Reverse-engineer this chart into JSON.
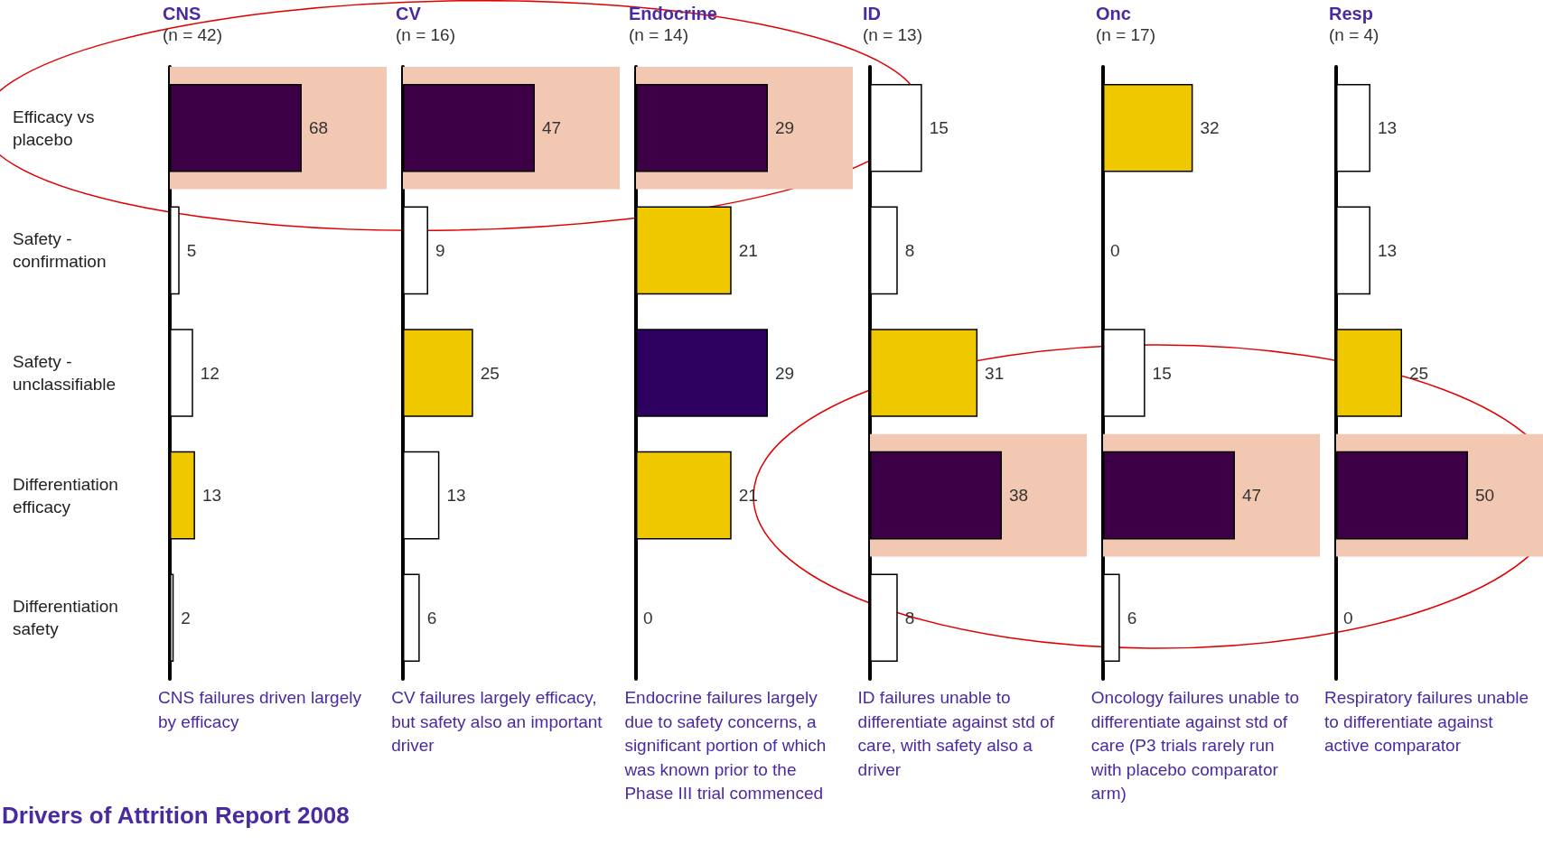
{
  "chart_data": [
    {
      "type": "bar",
      "orientation": "horizontal",
      "title": "CNS",
      "subtitle": "(n = 42)",
      "categories": [
        "Efficacy vs placebo",
        "Safety - confirmation",
        "Safety - unclassifiable",
        "Differentiation efficacy",
        "Differentiation safety"
      ],
      "values": [
        68,
        5,
        12,
        13,
        2
      ],
      "colors": [
        "#3d0047",
        "#ffffff",
        "#ffffff",
        "#f0c800",
        "#ffffff"
      ],
      "data_labels": true,
      "tick_labels": "y",
      "bands": [
        {
          "axis": "y",
          "from": "Efficacy vs placebo",
          "to": "Efficacy vs placebo",
          "color": "#f3c8b2"
        }
      ],
      "annotations": [
        "CNS failures driven largely by efficacy",
        "Drivers of Attrition Report 2008"
      ]
    },
    {
      "type": "bar",
      "orientation": "horizontal",
      "title": "CV",
      "subtitle": "(n = 16)",
      "categories": [
        "Efficacy vs placebo",
        "Safety - confirmation",
        "Safety - unclassifiable",
        "Differentiation efficacy",
        "Differentiation safety"
      ],
      "values": [
        47,
        9,
        25,
        13,
        6
      ],
      "colors": [
        "#3d0047",
        "#ffffff",
        "#f0c800",
        "#ffffff",
        "#ffffff"
      ],
      "data_labels": true,
      "tick_labels": false,
      "bands": [
        {
          "axis": "y",
          "from": "Efficacy vs placebo",
          "to": "Efficacy vs placebo",
          "color": "#f3c8b2"
        }
      ],
      "annotations": [
        "CV failures largely efficacy, but safety also an important driver"
      ]
    },
    {
      "type": "bar",
      "orientation": "horizontal",
      "title": "Endocrine",
      "subtitle": "(n = 14)",
      "categories": [
        "Efficacy vs placebo",
        "Safety - confirmation",
        "Safety - unclassifiable",
        "Differentiation efficacy",
        "Differentiation safety"
      ],
      "values": [
        29,
        21,
        29,
        21,
        0
      ],
      "colors": [
        "#3d0047",
        "#f0c800",
        "#2e0060",
        "#f0c800",
        "#ffffff"
      ],
      "data_labels": true,
      "tick_labels": false,
      "bands": [
        {
          "axis": "y",
          "from": "Efficacy vs placebo",
          "to": "Efficacy vs placebo",
          "color": "#f3c8b2"
        }
      ],
      "annotations": [
        "Endocrine failures largely due to safety concerns, a significant portion of which was known prior to the Phase III trial commenced"
      ]
    },
    {
      "type": "bar",
      "orientation": "horizontal",
      "title": "ID",
      "subtitle": "(n = 13)",
      "categories": [
        "Efficacy vs placebo",
        "Safety - confirmation",
        "Safety - unclassifiable",
        "Differentiation efficacy",
        "Differentiation safety"
      ],
      "values": [
        15,
        8,
        31,
        38,
        8
      ],
      "colors": [
        "#ffffff",
        "#ffffff",
        "#f0c800",
        "#3d0047",
        "#ffffff"
      ],
      "data_labels": true,
      "tick_labels": false,
      "bands": [
        {
          "axis": "y",
          "from": "Differentiation efficacy",
          "to": "Differentiation efficacy",
          "color": "#f3c8b2"
        }
      ],
      "annotations": [
        "ID failures unable to differentiate against std of care, with safety also a driver"
      ]
    },
    {
      "type": "bar",
      "orientation": "horizontal",
      "title": "Onc",
      "subtitle": "(n = 17)",
      "categories": [
        "Efficacy vs placebo",
        "Safety - confirmation",
        "Safety - unclassifiable",
        "Differentiation efficacy",
        "Differentiation safety"
      ],
      "values": [
        32,
        0,
        15,
        47,
        6
      ],
      "colors": [
        "#f0c800",
        "#ffffff",
        "#ffffff",
        "#3d0047",
        "#ffffff"
      ],
      "data_labels": true,
      "tick_labels": false,
      "bands": [
        {
          "axis": "y",
          "from": "Differentiation efficacy",
          "to": "Differentiation efficacy",
          "color": "#f3c8b2"
        }
      ],
      "annotations": [
        "Oncology failures unable to differentiate against std of care (P3 trials rarely run with placebo comparator arm)"
      ]
    },
    {
      "type": "bar",
      "orientation": "horizontal",
      "title": "Resp",
      "subtitle": "(n = 4)",
      "categories": [
        "Efficacy vs placebo",
        "Safety - confirmation",
        "Safety - unclassifiable",
        "Differentiation efficacy",
        "Differentiation safety"
      ],
      "values": [
        13,
        13,
        25,
        50,
        0
      ],
      "colors": [
        "#ffffff",
        "#ffffff",
        "#f0c800",
        "#3d0047",
        "#ffffff"
      ],
      "data_labels": true,
      "tick_labels": false,
      "bands": [
        {
          "axis": "y",
          "from": "Differentiation efficacy",
          "to": "Differentiation efficacy",
          "color": "#f3c8b2"
        }
      ],
      "annotations": [
        "Respiratory failures unable to differentiate against active comparator"
      ]
    }
  ]
}
